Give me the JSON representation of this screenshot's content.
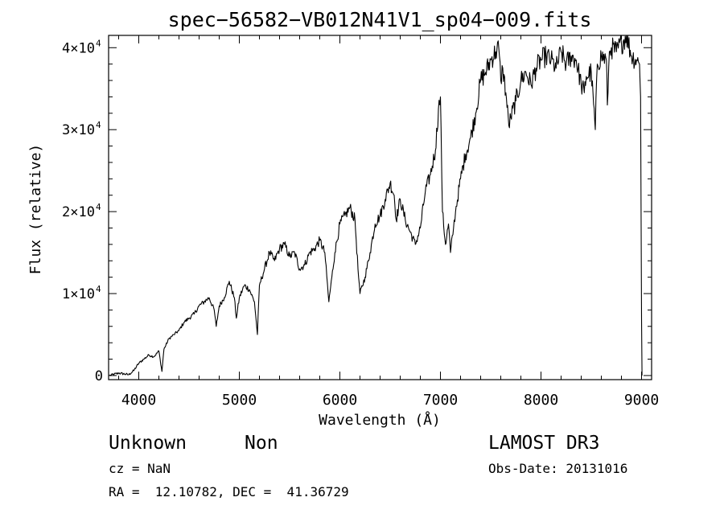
{
  "chart_data": {
    "type": "line",
    "title": "spec−56582−VB012N41V1_sp04−009.fits",
    "xlabel": "Wavelength (Å)",
    "ylabel": "Flux (relative)",
    "xlim": [
      3700,
      9100
    ],
    "ylim": [
      -500,
      41500
    ],
    "x_ticks": [
      {
        "value": 4000,
        "label": "4000"
      },
      {
        "value": 5000,
        "label": "5000"
      },
      {
        "value": 6000,
        "label": "6000"
      },
      {
        "value": 7000,
        "label": "7000"
      },
      {
        "value": 8000,
        "label": "8000"
      },
      {
        "value": 9000,
        "label": "9000"
      }
    ],
    "y_ticks": [
      {
        "value": 0,
        "label": "0",
        "exp": ""
      },
      {
        "value": 10000,
        "label": "1×10",
        "exp": "4"
      },
      {
        "value": 20000,
        "label": "2×10",
        "exp": "4"
      },
      {
        "value": 30000,
        "label": "3×10",
        "exp": "4"
      },
      {
        "value": 40000,
        "label": "4×10",
        "exp": "4"
      }
    ],
    "series": [
      {
        "name": "spectrum",
        "x": [
          3710,
          3800,
          3900,
          3950,
          4000,
          4050,
          4100,
          4150,
          4200,
          4230,
          4250,
          4300,
          4350,
          4400,
          4450,
          4500,
          4550,
          4600,
          4650,
          4700,
          4750,
          4770,
          4800,
          4850,
          4900,
          4950,
          4970,
          5000,
          5050,
          5100,
          5150,
          5180,
          5200,
          5250,
          5300,
          5350,
          5400,
          5450,
          5500,
          5550,
          5600,
          5650,
          5700,
          5750,
          5800,
          5850,
          5870,
          5890,
          5920,
          5950,
          6000,
          6050,
          6100,
          6150,
          6180,
          6200,
          6250,
          6300,
          6350,
          6400,
          6450,
          6500,
          6540,
          6560,
          6600,
          6650,
          6700,
          6750,
          6800,
          6850,
          6900,
          6950,
          6980,
          7000,
          7020,
          7050,
          7080,
          7100,
          7130,
          7150,
          7200,
          7250,
          7300,
          7350,
          7400,
          7450,
          7500,
          7550,
          7580,
          7600,
          7620,
          7650,
          7680,
          7700,
          7750,
          7800,
          7850,
          7900,
          7950,
          8000,
          8050,
          8100,
          8150,
          8200,
          8250,
          8300,
          8350,
          8400,
          8430,
          8450,
          8500,
          8540,
          8560,
          8600,
          8650,
          8660,
          8680,
          8700,
          8750,
          8800,
          8850,
          8900,
          8950,
          8980,
          8990,
          9000,
          9005
        ],
        "y": [
          0,
          300,
          100,
          600,
          1500,
          2000,
          2500,
          2300,
          3000,
          500,
          3200,
          4500,
          5000,
          5500,
          6500,
          7000,
          7500,
          8500,
          9000,
          9500,
          8000,
          6000,
          8500,
          9500,
          11500,
          9500,
          7000,
          9500,
          11000,
          10500,
          9000,
          5000,
          11000,
          13000,
          15000,
          14000,
          15500,
          16000,
          14500,
          15000,
          13000,
          13500,
          15000,
          15500,
          16500,
          15000,
          12000,
          9000,
          12000,
          15000,
          18500,
          19500,
          20500,
          19000,
          13000,
          10000,
          12000,
          15000,
          18500,
          19500,
          21500,
          23500,
          22000,
          19000,
          21500,
          19000,
          17500,
          16000,
          18000,
          22500,
          24500,
          27500,
          32500,
          34000,
          20000,
          16000,
          18500,
          15000,
          18000,
          20000,
          24000,
          27000,
          29000,
          32000,
          36000,
          37000,
          38500,
          39500,
          40000,
          36000,
          37500,
          34500,
          30500,
          31500,
          33500,
          36000,
          37000,
          35500,
          37500,
          38500,
          39000,
          38500,
          37500,
          39500,
          38000,
          39000,
          38500,
          35500,
          34500,
          36500,
          37000,
          30000,
          38000,
          39000,
          38500,
          33000,
          39500,
          40000,
          39500,
          40500,
          41500,
          39000,
          38500,
          38000,
          34000,
          7000,
          0
        ]
      }
    ]
  },
  "footer": {
    "object_class": "Unknown",
    "subclass": "Non",
    "cz": "cz = NaN",
    "coords": "RA =  12.10782, DEC =  41.36729",
    "survey": "LAMOST DR3",
    "obs_date": "Obs-Date: 20131016"
  }
}
